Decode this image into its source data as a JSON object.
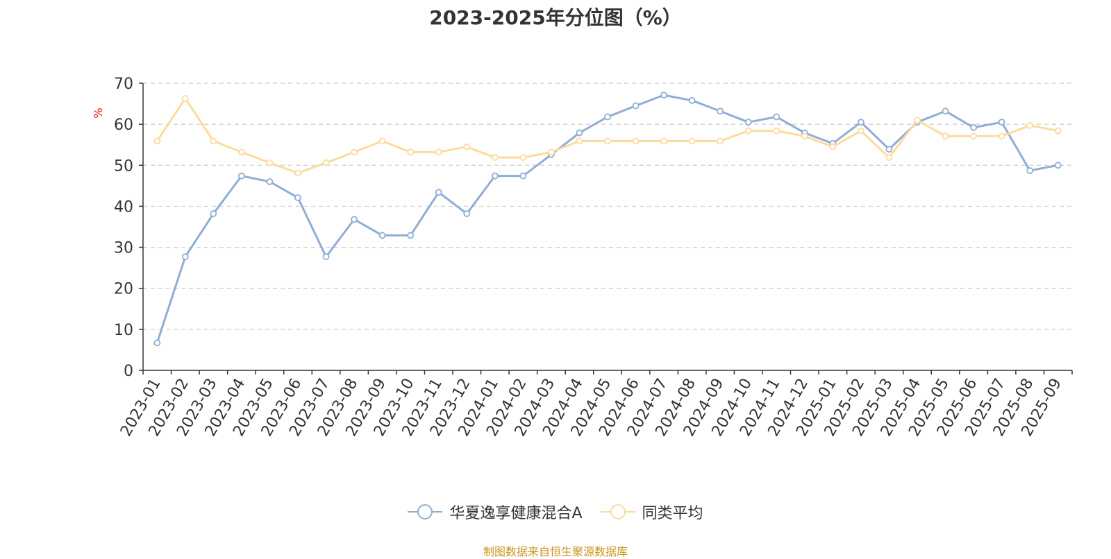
{
  "chart_data": {
    "type": "line",
    "title": "2023-2025年分位图（%）",
    "ylabel": "%",
    "ylim": [
      0,
      70
    ],
    "yticks": [
      0,
      10,
      20,
      30,
      40,
      50,
      60,
      70
    ],
    "grid": true,
    "legend_position": "bottom",
    "categories": [
      "2023-01",
      "2023-02",
      "2023-03",
      "2023-04",
      "2023-05",
      "2023-06",
      "2023-07",
      "2023-08",
      "2023-09",
      "2023-10",
      "2023-11",
      "2023-12",
      "2024-01",
      "2024-02",
      "2024-03",
      "2024-04",
      "2024-05",
      "2024-06",
      "2024-07",
      "2024-08",
      "2024-09",
      "2024-10",
      "2024-11",
      "2024-12",
      "2025-01",
      "2025-02",
      "2025-03",
      "2025-04",
      "2025-05",
      "2025-06",
      "2025-07",
      "2025-08",
      "2025-09"
    ],
    "series": [
      {
        "name": "华夏逸享健康混合A",
        "color": "#8eadd7",
        "values": [
          6.7,
          27.7,
          38.2,
          47.4,
          46.0,
          42.1,
          27.7,
          36.8,
          32.9,
          32.9,
          43.4,
          38.2,
          47.4,
          47.4,
          52.6,
          57.9,
          61.8,
          64.5,
          67.1,
          65.8,
          63.2,
          60.5,
          61.8,
          57.9,
          55.3,
          60.5,
          53.9,
          60.5,
          63.2,
          59.2,
          60.5,
          48.7,
          50.0
        ]
      },
      {
        "name": "同类平均",
        "color": "#fcdb9d",
        "values": [
          55.9,
          66.3,
          55.9,
          53.2,
          50.6,
          48.1,
          50.6,
          53.2,
          55.9,
          53.2,
          53.2,
          54.5,
          51.9,
          51.9,
          53.2,
          55.9,
          55.9,
          55.9,
          55.9,
          55.9,
          55.9,
          58.4,
          58.4,
          57.1,
          54.5,
          58.4,
          51.9,
          61.0,
          57.1,
          57.1,
          57.1,
          59.7,
          58.4
        ]
      }
    ]
  },
  "source_text": "制图数据来自恒生聚源数据库",
  "ylabel_color": "#ff0000",
  "source_color": "#c8961e"
}
